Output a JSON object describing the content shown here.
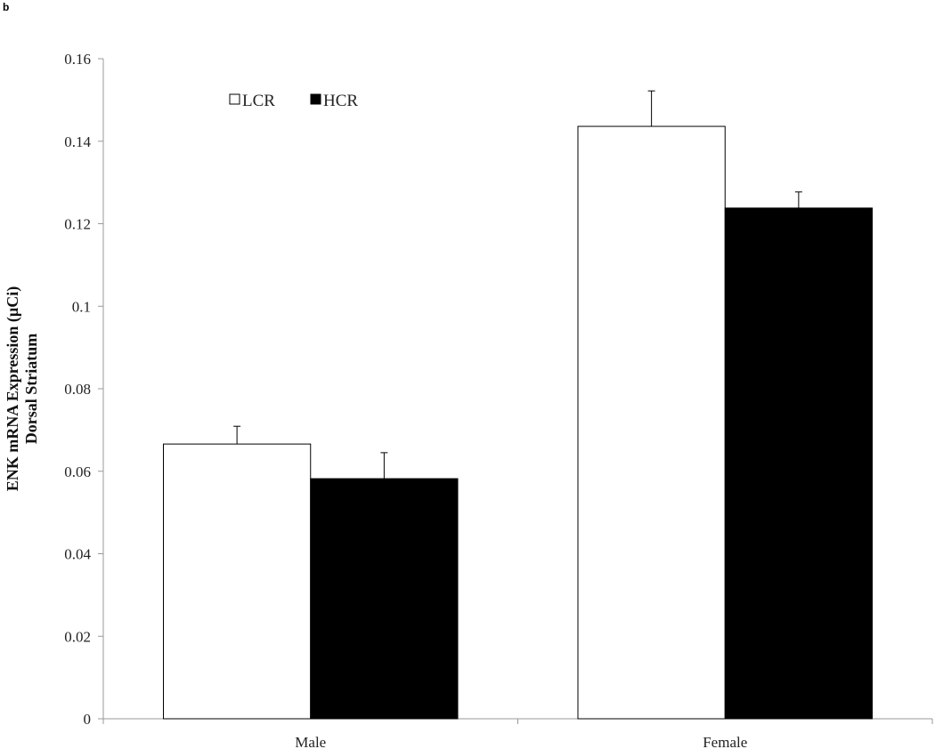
{
  "panel_label": "b",
  "chart_data": {
    "type": "bar",
    "categories": [
      "Male",
      "Female"
    ],
    "series": [
      {
        "name": "LCR",
        "values": [
          0.0666,
          0.1436
        ],
        "errors": [
          0.0043,
          0.0086
        ],
        "color": "#ffffff"
      },
      {
        "name": "HCR",
        "values": [
          0.0582,
          0.1238
        ],
        "errors": [
          0.0063,
          0.0039
        ],
        "color": "#000000"
      }
    ],
    "ylabel_lines": [
      "ENK mRNA Expression (µCi)",
      "Dorsal Striatum"
    ],
    "ylim": [
      0,
      0.16
    ],
    "yticks": [
      "0",
      "0.02",
      "0.04",
      "0.06",
      "0.08",
      "0.1",
      "0.12",
      "0.14",
      "0.16"
    ],
    "legend_position": "top-left",
    "grid": false
  }
}
